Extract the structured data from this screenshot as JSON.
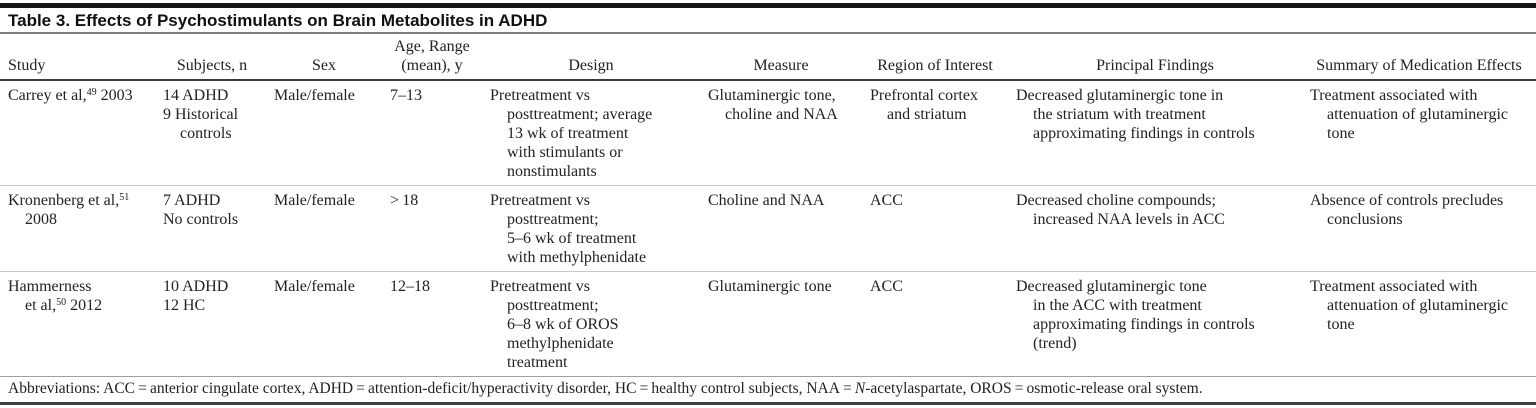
{
  "title": "Table 3. Effects of Psychostimulants on Brain Metabolites in ADHD",
  "colors": {
    "top_rule": "#151515",
    "header_rule": "#3b3b3b",
    "row_separator": "#c9c9c9",
    "text": "#1c1c1c"
  },
  "columns": {
    "study": [
      "Study"
    ],
    "subjects": [
      "Subjects, n"
    ],
    "sex": [
      "Sex"
    ],
    "age": [
      "Age, Range",
      "(mean), y"
    ],
    "design": [
      "Design"
    ],
    "measure": [
      "Measure"
    ],
    "region": [
      "Region of Interest"
    ],
    "findings": [
      "Principal Findings"
    ],
    "summary": [
      "Summary of Medication Effects"
    ]
  },
  "rows": [
    {
      "study": [
        "Carrey et al,^{49} 2003"
      ],
      "subjects": [
        "14 ADHD",
        "9 Historical",
        "~controls"
      ],
      "sex": [
        "Male/female"
      ],
      "age": [
        "7–13"
      ],
      "design": [
        "Pretreatment vs",
        "~posttreatment; average",
        "~13 wk of treatment",
        "~with stimulants or",
        "~nonstimulants"
      ],
      "measure": [
        "Glutaminergic tone,",
        "~choline and NAA"
      ],
      "region": [
        "Prefrontal cortex",
        "~and striatum"
      ],
      "findings": [
        "Decreased glutaminergic tone in",
        "~the striatum with treatment",
        "~approximating findings in controls"
      ],
      "summary": [
        "Treatment associated with",
        "~attenuation of glutaminergic",
        "~tone"
      ]
    },
    {
      "study": [
        "Kronenberg et al,^{51}",
        "~2008"
      ],
      "subjects": [
        "7 ADHD",
        "No controls"
      ],
      "sex": [
        "Male/female"
      ],
      "age": [
        "> 18"
      ],
      "design": [
        "Pretreatment vs",
        "~posttreatment;",
        "~5–6 wk of treatment",
        "~with methylphenidate"
      ],
      "measure": [
        "Choline and NAA"
      ],
      "region": [
        "ACC"
      ],
      "findings": [
        "Decreased choline compounds;",
        "~increased NAA levels in ACC"
      ],
      "summary": [
        "Absence of controls precludes",
        "~conclusions"
      ]
    },
    {
      "study": [
        "Hammerness",
        "~et al,^{50} 2012"
      ],
      "subjects": [
        "10 ADHD",
        "12 HC"
      ],
      "sex": [
        "Male/female"
      ],
      "age": [
        "12–18"
      ],
      "design": [
        "Pretreatment vs",
        "~posttreatment;",
        "~6–8 wk of OROS",
        "~methylphenidate",
        "~treatment"
      ],
      "measure": [
        "Glutaminergic tone"
      ],
      "region": [
        "ACC"
      ],
      "findings": [
        "Decreased glutaminergic tone",
        "~in the ACC with treatment",
        "~approximating findings in controls",
        "~(trend)"
      ],
      "summary": [
        "Treatment associated with",
        "~attenuation of glutaminergic",
        "~tone"
      ]
    }
  ],
  "footnote": {
    "prefix": "Abbreviations: ACC = anterior cingulate cortex, ADHD = attention-deficit/hyperactivity disorder, HC = healthy control subjects, NAA = ",
    "italic": "N",
    "suffix": "-acetylaspartate, OROS = osmotic-release oral system."
  }
}
